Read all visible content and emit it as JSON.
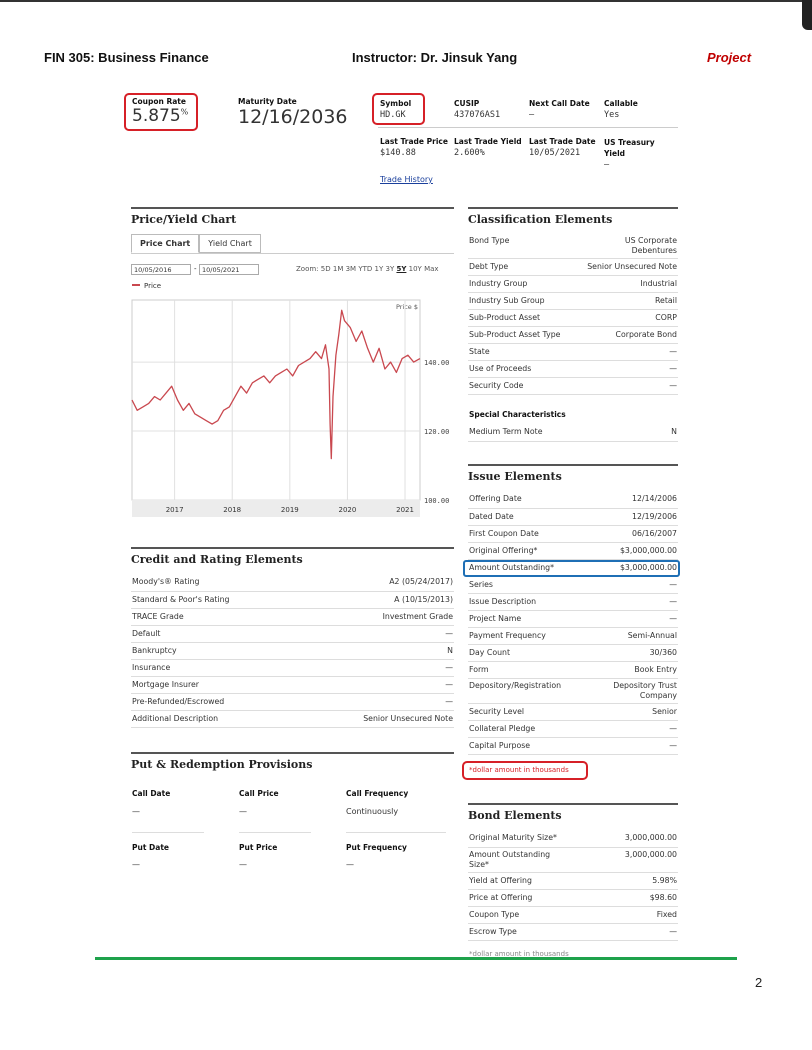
{
  "header": {
    "course": "FIN 305: Business Finance",
    "instructor": "Instructor: Dr. Jinsuk Yang",
    "project": "Project",
    "page_number": "2"
  },
  "bond_summary": {
    "coupon_rate_label": "Coupon Rate",
    "coupon_rate": "5.875",
    "coupon_unit": "%",
    "maturity_date_label": "Maturity Date",
    "maturity_date": "12/16/2036",
    "symbol_label": "Symbol",
    "symbol": "HD.GK",
    "cusip_label": "CUSIP",
    "cusip": "437076AS1",
    "next_call_date_label": "Next Call Date",
    "next_call_date": "—",
    "callable_label": "Callable",
    "callable": "Yes",
    "last_trade_price_label": "Last Trade Price",
    "last_trade_price": "$140.88",
    "last_trade_yield_label": "Last Trade Yield",
    "last_trade_yield": "2.600%",
    "last_trade_date_label": "Last Trade Date",
    "last_trade_date": "10/05/2021",
    "us_treasury_yield_label": "US Treasury Yield",
    "us_treasury_yield": "—",
    "trade_history_link": "Trade History"
  },
  "price_yield": {
    "title": "Price/Yield Chart",
    "tabs": [
      "Price Chart",
      "Yield Chart"
    ],
    "date_from": "10/05/2016",
    "date_sep": "-",
    "date_to": "10/05/2021",
    "zoom_label": "Zoom:",
    "zoom_options": [
      "5D",
      "1M",
      "3M",
      "YTD",
      "1Y",
      "3Y",
      "5Y",
      "10Y",
      "Max"
    ],
    "zoom_selected": "5Y"
  },
  "chart_data": {
    "type": "line",
    "legend": [
      "Price"
    ],
    "ylabel": "Price $",
    "y_ticks": [
      "100.00",
      "120.00",
      "140.00"
    ],
    "x_ticks": [
      "2017",
      "2018",
      "2019",
      "2020",
      "2021"
    ],
    "ylim": [
      100,
      158
    ],
    "xlim": [
      2016.76,
      2021.76
    ],
    "series": [
      {
        "name": "Price",
        "color": "#c9484f",
        "x": [
          2016.76,
          2016.85,
          2016.95,
          2017.05,
          2017.15,
          2017.25,
          2017.35,
          2017.45,
          2017.55,
          2017.65,
          2017.75,
          2017.85,
          2017.95,
          2018.05,
          2018.15,
          2018.25,
          2018.35,
          2018.45,
          2018.55,
          2018.65,
          2018.75,
          2018.85,
          2018.95,
          2019.05,
          2019.15,
          2019.25,
          2019.35,
          2019.45,
          2019.55,
          2019.65,
          2019.75,
          2019.85,
          2019.95,
          2020.05,
          2020.12,
          2020.18,
          2020.2,
          2020.22,
          2020.25,
          2020.3,
          2020.35,
          2020.4,
          2020.45,
          2020.55,
          2020.65,
          2020.75,
          2020.85,
          2020.95,
          2021.05,
          2021.15,
          2021.25,
          2021.35,
          2021.45,
          2021.55,
          2021.65,
          2021.76
        ],
        "y": [
          129,
          126,
          127,
          128,
          130,
          129,
          131,
          133,
          129,
          126,
          128,
          125,
          124,
          123,
          122,
          123,
          126,
          127,
          130,
          133,
          131,
          134,
          135,
          136,
          134,
          136,
          137,
          138,
          136,
          139,
          140,
          141,
          143,
          141,
          145,
          138,
          122,
          112,
          130,
          142,
          148,
          155,
          152,
          150,
          146,
          149,
          144,
          140,
          144,
          138,
          140,
          137,
          141,
          142,
          140,
          141
        ]
      }
    ]
  },
  "credit": {
    "title": "Credit and Rating Elements",
    "rows": [
      [
        "Moody's® Rating",
        "A2 (05/24/2017)"
      ],
      [
        "Standard & Poor's Rating",
        "A (10/15/2013)"
      ],
      [
        "TRACE Grade",
        "Investment Grade"
      ],
      [
        "Default",
        "—"
      ],
      [
        "Bankruptcy",
        "N"
      ],
      [
        "Insurance",
        "—"
      ],
      [
        "Mortgage Insurer",
        "—"
      ],
      [
        "Pre-Refunded/Escrowed",
        "—"
      ],
      [
        "Additional Description",
        "Senior Unsecured Note"
      ]
    ]
  },
  "put_redemption": {
    "title": "Put & Redemption Provisions",
    "call_headers": [
      "Call Date",
      "Call Price",
      "Call Frequency"
    ],
    "call_values": [
      "—",
      "—",
      "Continuously"
    ],
    "put_headers": [
      "Put Date",
      "Put Price",
      "Put Frequency"
    ],
    "put_values": [
      "—",
      "—",
      "—"
    ]
  },
  "classification": {
    "title": "Classification Elements",
    "rows": [
      [
        "Bond Type",
        "US Corporate Debentures"
      ],
      [
        "Debt Type",
        "Senior Unsecured Note"
      ],
      [
        "Industry Group",
        "Industrial"
      ],
      [
        "Industry Sub Group",
        "Retail"
      ],
      [
        "Sub-Product Asset",
        "CORP"
      ],
      [
        "Sub-Product Asset Type",
        "Corporate Bond"
      ],
      [
        "State",
        "—"
      ],
      [
        "Use of Proceeds",
        "—"
      ],
      [
        "Security Code",
        "—"
      ]
    ],
    "special_title": "Special Characteristics",
    "special_rows": [
      [
        "Medium Term Note",
        "N"
      ]
    ]
  },
  "issue": {
    "title": "Issue Elements",
    "rows": [
      [
        "Offering Date",
        "12/14/2006"
      ],
      [
        "Dated Date",
        "12/19/2006"
      ],
      [
        "First Coupon Date",
        "06/16/2007"
      ],
      [
        "Original Offering*",
        "$3,000,000.00"
      ],
      [
        "Amount Outstanding*",
        "$3,000,000.00"
      ],
      [
        "Series",
        "—"
      ],
      [
        "Issue Description",
        "—"
      ],
      [
        "Project Name",
        "—"
      ],
      [
        "Payment Frequency",
        "Semi-Annual"
      ],
      [
        "Day Count",
        "30/360"
      ],
      [
        "Form",
        "Book Entry"
      ],
      [
        "Depository/Registration",
        "Depository Trust Company"
      ],
      [
        "Security Level",
        "Senior"
      ],
      [
        "Collateral Pledge",
        "—"
      ],
      [
        "Capital Purpose",
        "—"
      ]
    ],
    "footnote": "*dollar amount in thousands"
  },
  "bond": {
    "title": "Bond Elements",
    "rows": [
      [
        "Original Maturity Size*",
        "3,000,000.00"
      ],
      [
        "Amount Outstanding Size*",
        "3,000,000.00"
      ],
      [
        "Yield at Offering",
        "5.98%"
      ],
      [
        "Price at Offering",
        "$98.60"
      ],
      [
        "Coupon Type",
        "Fixed"
      ],
      [
        "Escrow Type",
        "—"
      ]
    ],
    "footnote": "*dollar amount in thousands"
  }
}
